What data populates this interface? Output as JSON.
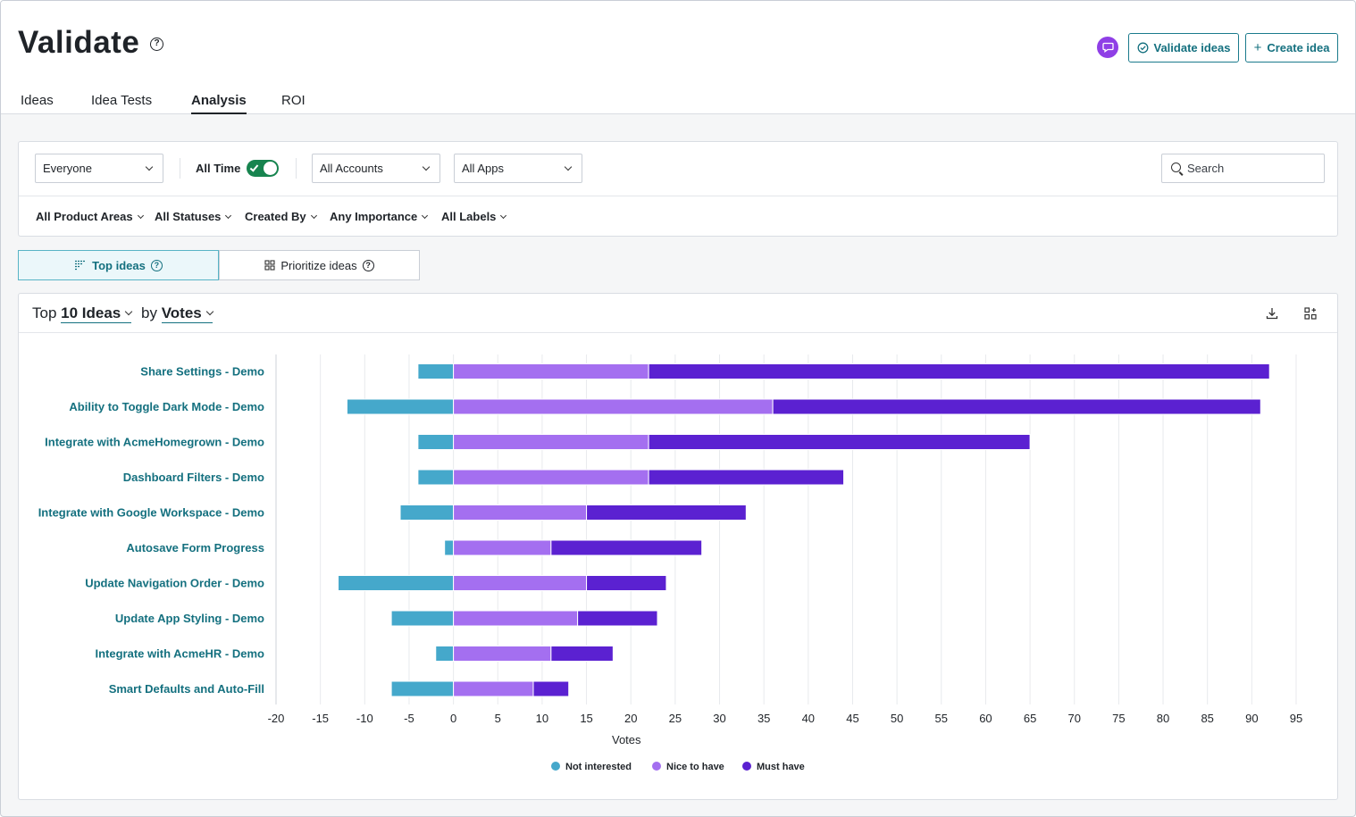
{
  "header": {
    "title": "Validate",
    "help_icon": "question-circle-icon",
    "chat_icon": "chat-bubble-icon",
    "validate_label": "Validate ideas",
    "create_label": "Create idea",
    "accent": "#14707f",
    "chat_color": "#8f3fe6"
  },
  "tabs": [
    {
      "label": "Ideas"
    },
    {
      "label": "Idea Tests"
    },
    {
      "label": "Analysis"
    },
    {
      "label": "ROI"
    }
  ],
  "filters": {
    "audience": "Everyone",
    "time_toggle_label": "All Time",
    "time_toggle_on": true,
    "accounts": "All Accounts",
    "apps": "All Apps",
    "search_placeholder": "Search",
    "dropdowns": [
      {
        "label": "All Product Areas"
      },
      {
        "label": "All Statuses"
      },
      {
        "label": "Created By"
      },
      {
        "label": "Any Importance"
      },
      {
        "label": "All Labels"
      }
    ]
  },
  "views": {
    "top_ideas": "Top ideas",
    "prioritize_ideas": "Prioritize ideas"
  },
  "card": {
    "prefix": "Top",
    "count_label": "10 Ideas",
    "by_label": "by",
    "metric_label": "Votes",
    "download_icon": "download-icon",
    "layout_icon": "grid-add-icon"
  },
  "chart_data": {
    "type": "bar",
    "orientation": "horizontal",
    "stacked": true,
    "categories": [
      "Share Settings - Demo",
      "Ability to Toggle Dark Mode - Demo",
      "Integrate with AcmeHomegrown - Demo",
      "Dashboard Filters - Demo",
      "Integrate with Google Workspace - Demo",
      "Autosave Form Progress",
      "Update Navigation Order - Demo",
      "Update App Styling - Demo",
      "Integrate with AcmeHR - Demo",
      "Smart Defaults and Auto-Fill"
    ],
    "series": [
      {
        "name": "Not interested",
        "color": "#45a8cb",
        "values": [
          -4,
          -12,
          -4,
          -4,
          -6,
          -1,
          -13,
          -7,
          -2,
          -7
        ]
      },
      {
        "name": "Nice to have",
        "color": "#a46ff0",
        "values": [
          22,
          36,
          22,
          22,
          15,
          11,
          15,
          14,
          11,
          9
        ]
      },
      {
        "name": "Must have",
        "color": "#5b21d1",
        "values": [
          70,
          55,
          43,
          22,
          18,
          17,
          9,
          9,
          7,
          4
        ]
      }
    ],
    "xlabel": "Votes",
    "xlim": [
      -20,
      95
    ],
    "xticks": [
      -20,
      -15,
      -10,
      -5,
      0,
      5,
      10,
      15,
      20,
      25,
      30,
      35,
      40,
      45,
      50,
      55,
      60,
      65,
      70,
      75,
      80,
      85,
      90,
      95
    ],
    "grid": true,
    "legend": "bottom-center",
    "category_color": "#14707f"
  }
}
